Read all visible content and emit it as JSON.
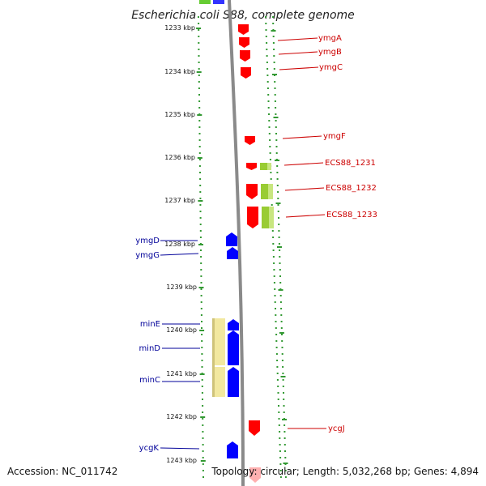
{
  "title": "Escherichia coli S88, complete genome",
  "footer": {
    "accession": "Accession: NC_011742",
    "topology": "Topology: circular; Length: 5,032,268 bp; Genes: 4,894"
  },
  "colors": {
    "forward_gene": "#ff0000",
    "reverse_gene": "#0000ff",
    "forward_label": "#cc0000",
    "reverse_label": "#000099",
    "operon_yellow": "#f2e8a0",
    "operon_green": "#99cc33",
    "tick_green": "#339933"
  },
  "kbp_ticks": [
    "1233 kbp",
    "1234 kbp",
    "1235 kbp",
    "1236 kbp",
    "1237 kbp",
    "1238 kbp",
    "1239 kbp",
    "1240 kbp",
    "1241 kbp",
    "1242 kbp",
    "1243 kbp"
  ],
  "forward_genes": [
    {
      "name": "ymgA",
      "label": "ymgA"
    },
    {
      "name": "ymgB",
      "label": "ymgB"
    },
    {
      "name": "ymgC",
      "label": "ymgC"
    },
    {
      "name": "ymgF",
      "label": "ymgF"
    },
    {
      "name": "ECS88_1231",
      "label": "ECS88_1231"
    },
    {
      "name": "ECS88_1232",
      "label": "ECS88_1232"
    },
    {
      "name": "ECS88_1233",
      "label": "ECS88_1233"
    },
    {
      "name": "ycgJ",
      "label": "ycgJ"
    }
  ],
  "reverse_genes": [
    {
      "name": "ymgD",
      "label": "ymgD"
    },
    {
      "name": "ymgG",
      "label": "ymgG"
    },
    {
      "name": "minE",
      "label": "minE"
    },
    {
      "name": "minD",
      "label": "minD"
    },
    {
      "name": "minC",
      "label": "minC"
    },
    {
      "name": "ycgK",
      "label": "ycgK"
    }
  ]
}
